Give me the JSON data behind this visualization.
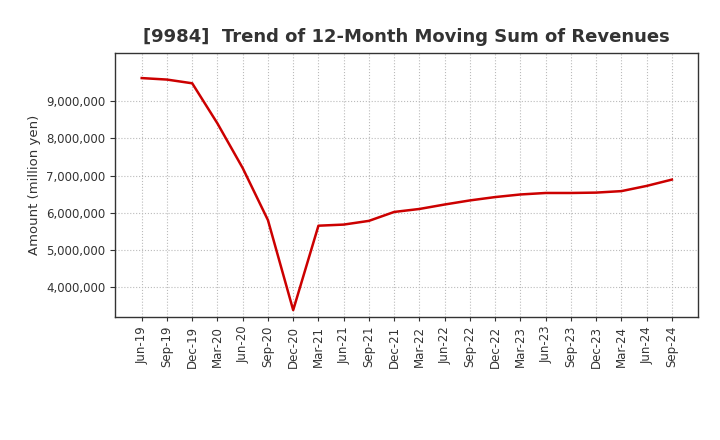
{
  "title": "[9984]  Trend of 12-Month Moving Sum of Revenues",
  "ylabel": "Amount (million yen)",
  "line_color": "#cc0000",
  "background_color": "#ffffff",
  "grid_color": "#bbbbbb",
  "x_labels": [
    "Jun-19",
    "Sep-19",
    "Dec-19",
    "Mar-20",
    "Jun-20",
    "Sep-20",
    "Dec-20",
    "Mar-21",
    "Jun-21",
    "Sep-21",
    "Dec-21",
    "Mar-22",
    "Jun-22",
    "Sep-22",
    "Dec-22",
    "Mar-23",
    "Jun-23",
    "Sep-23",
    "Dec-23",
    "Mar-24",
    "Jun-24",
    "Sep-24"
  ],
  "values": [
    9620000,
    9580000,
    9480000,
    8400000,
    7200000,
    5800000,
    3380000,
    5650000,
    5680000,
    5780000,
    6020000,
    6100000,
    6220000,
    6330000,
    6420000,
    6490000,
    6530000,
    6530000,
    6540000,
    6580000,
    6720000,
    6890000
  ],
  "ylim": [
    3200000,
    10300000
  ],
  "yticks": [
    4000000,
    5000000,
    6000000,
    7000000,
    8000000,
    9000000
  ],
  "title_fontsize": 13,
  "axis_fontsize": 9.5,
  "tick_fontsize": 8.5,
  "title_color": "#333333",
  "spine_color": "#333333",
  "tick_color": "#333333"
}
